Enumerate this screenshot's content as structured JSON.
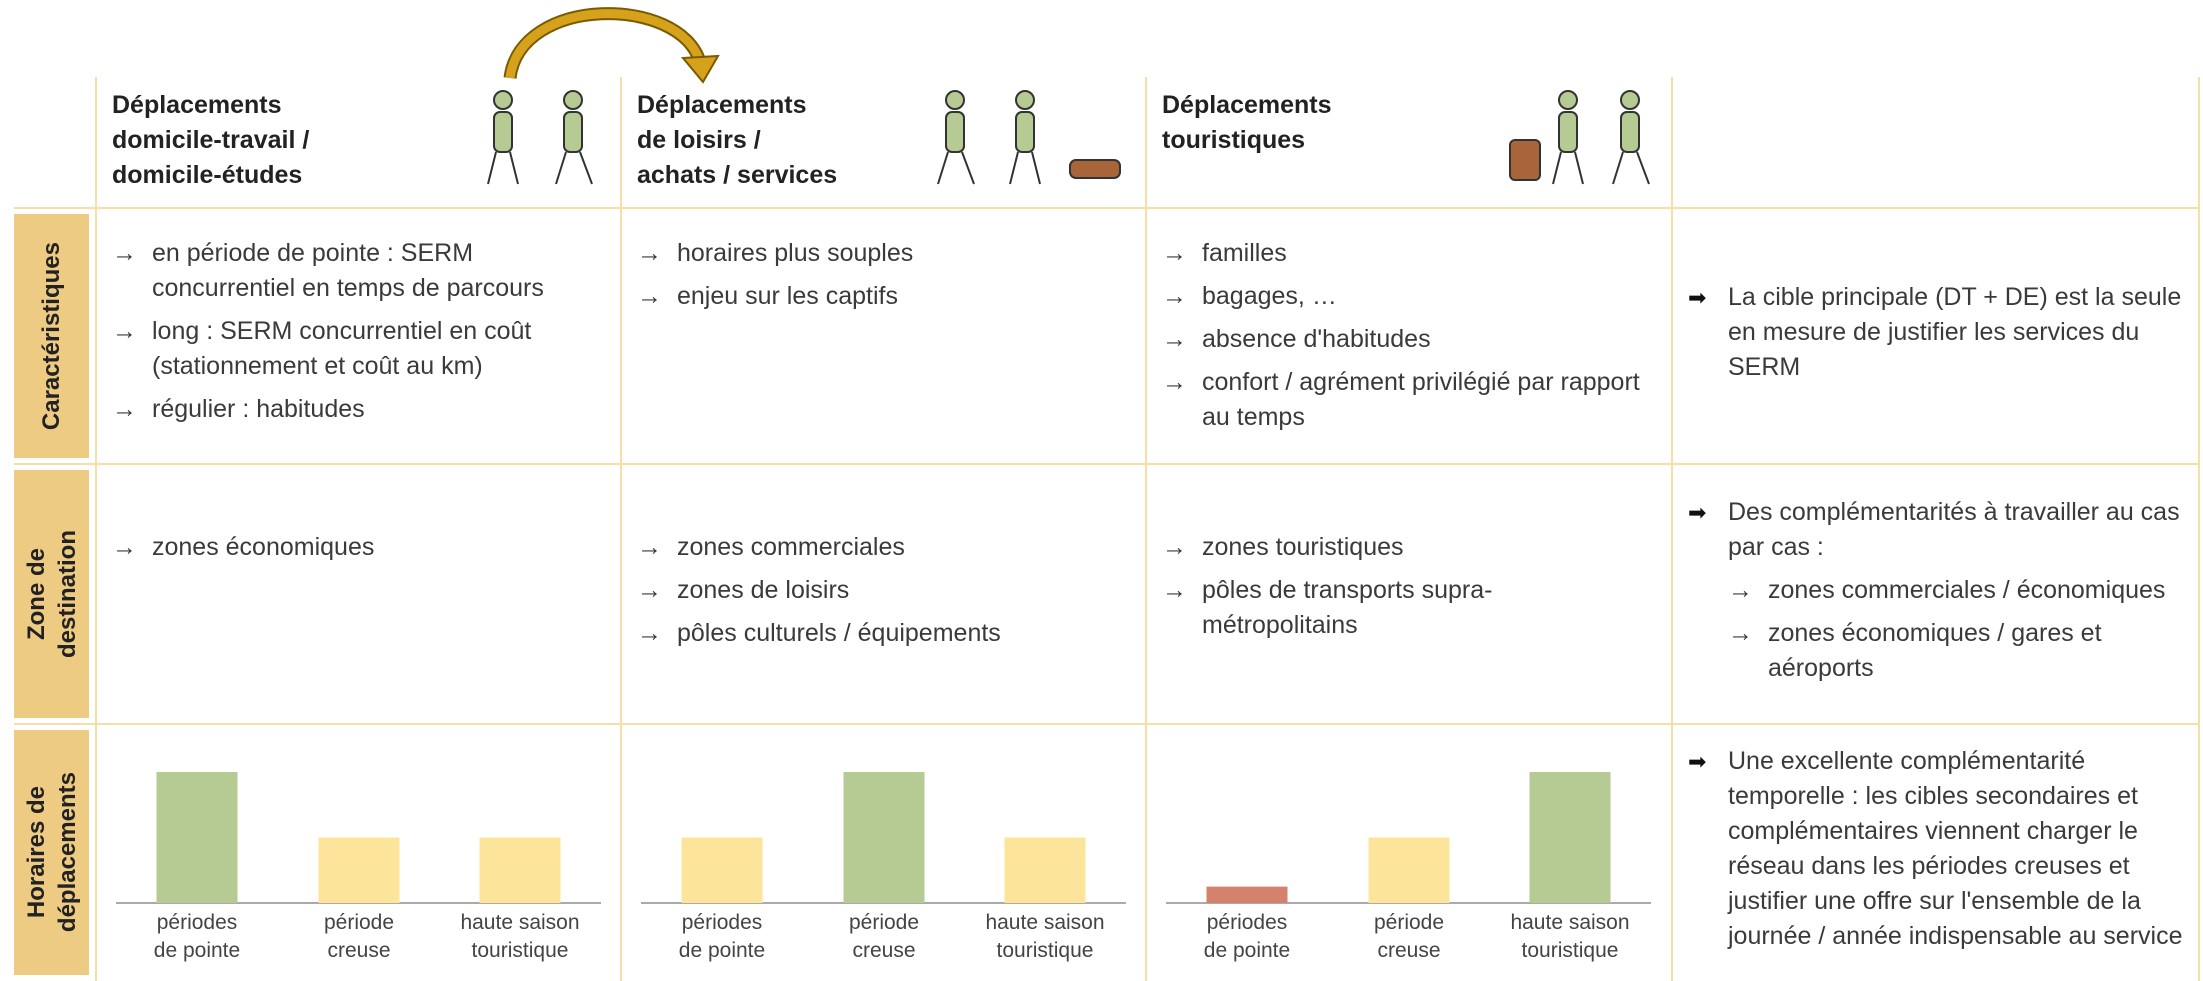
{
  "header": {
    "columns": [
      {
        "title": "Déplacements\ndomicile-travail /\ndomicile-études"
      },
      {
        "title": "Déplacements\nde loisirs /\nachats / services"
      },
      {
        "title": "Déplacements\ntouristiques"
      }
    ]
  },
  "rows": [
    {
      "label": "Caractéristiques"
    },
    {
      "label": "Zone de\ndestination"
    },
    {
      "label": "Horaires de\ndéplacements"
    }
  ],
  "cells": [
    [
      {
        "items": [
          "en période de pointe : SERM concurrentiel en temps de parcours",
          "long : SERM concurrentiel en coût (stationnement et coût au km)",
          "régulier : habitudes"
        ]
      },
      {
        "items": [
          "horaires plus souples",
          "enjeu sur les captifs"
        ]
      },
      {
        "items": [
          "familles",
          "bagages, …",
          "absence d'habitudes",
          "confort / agrément privilégié par rapport au temps"
        ]
      }
    ],
    [
      {
        "items": [
          "zones économiques"
        ]
      },
      {
        "items": [
          "zones commerciales",
          "zones de loisirs",
          "pôles culturels / équipements"
        ]
      },
      {
        "items": [
          "zones touristiques",
          "pôles de transports supra-métropolitains"
        ]
      }
    ]
  ],
  "conclusions": [
    {
      "text": "La cible principale (DT + DE) est la seule en mesure de justifier les services du SERM"
    },
    {
      "text": "Des complémentarités à travailler au cas par cas :",
      "items": [
        "zones commerciales / économiques",
        "zones économiques / gares et aéroports"
      ]
    },
    {
      "text": "Une excellente complémentarité temporelle : les cibles secondaires et complémentaires viennent charger le réseau dans les périodes creuses et justifier une offre sur l'ensemble de la journée / année indispensable au service"
    }
  ],
  "charts": [
    {
      "type": "bar",
      "categories": [
        "périodes\nde pointe",
        "période\ncreuse",
        "haute saison\ntouristique"
      ],
      "values": [
        8,
        4,
        4
      ],
      "colors": [
        "#b6ca93",
        "#fce59b",
        "#fce59b"
      ]
    },
    {
      "type": "bar",
      "categories": [
        "périodes\nde pointe",
        "période\ncreuse",
        "haute saison\ntouristique"
      ],
      "values": [
        4,
        8,
        4
      ],
      "colors": [
        "#fce59b",
        "#b6ca93",
        "#fce59b"
      ]
    },
    {
      "type": "bar",
      "categories": [
        "périodes\nde pointe",
        "période\ncreuse",
        "haute saison\ntouristique"
      ],
      "values": [
        1,
        4,
        8
      ],
      "colors": [
        "#d4826b",
        "#fce59b",
        "#b6ca93"
      ]
    }
  ]
}
